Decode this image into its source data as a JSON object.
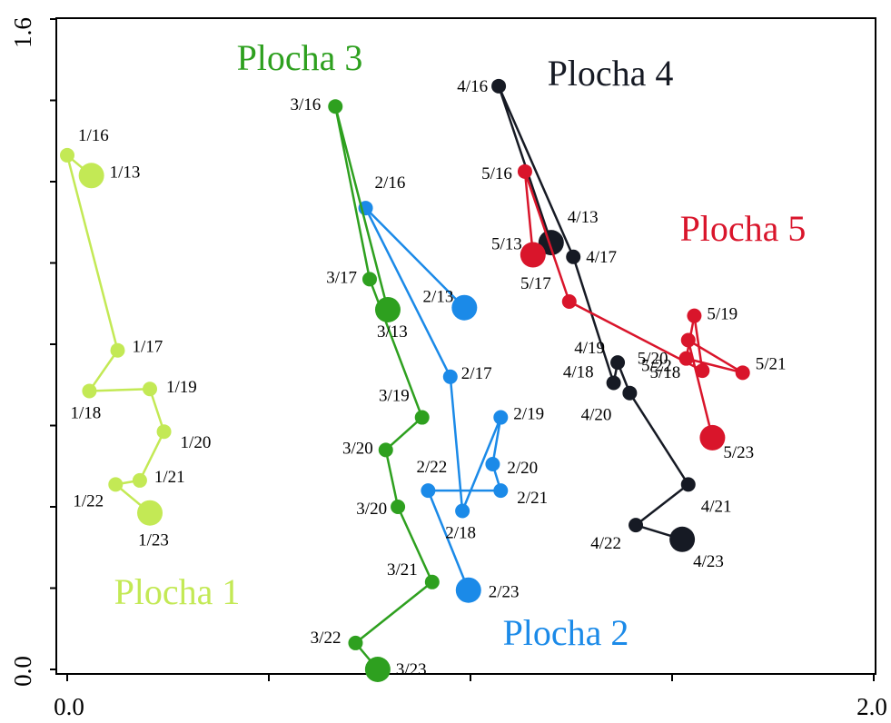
{
  "chart_data": {
    "type": "scatter",
    "xlim": [
      0.0,
      2.0
    ],
    "ylim": [
      0.0,
      1.6
    ],
    "x_tick_labels": [
      "0.0",
      "2.0"
    ],
    "y_tick_labels": [
      "0.0",
      "1.6"
    ],
    "x_minor_ticks": [
      0.0,
      0.5,
      1.0,
      1.5,
      2.0
    ],
    "y_minor_ticks": [
      0.0,
      0.2,
      0.4,
      0.6,
      0.8,
      1.0,
      1.2,
      1.4,
      1.6
    ],
    "grid": false,
    "series": [
      {
        "name": "Plocha 1",
        "color": "#c3e955",
        "points": [
          {
            "label": "1/13",
            "x": 0.06,
            "y": 1.215,
            "big": true
          },
          {
            "label": "1/16",
            "x": 0.0,
            "y": 1.265
          },
          {
            "label": "1/17",
            "x": 0.125,
            "y": 0.785
          },
          {
            "label": "1/18",
            "x": 0.055,
            "y": 0.685
          },
          {
            "label": "1/19",
            "x": 0.205,
            "y": 0.69
          },
          {
            "label": "1/20",
            "x": 0.24,
            "y": 0.585
          },
          {
            "label": "1/21",
            "x": 0.18,
            "y": 0.465
          },
          {
            "label": "1/22",
            "x": 0.12,
            "y": 0.455
          },
          {
            "label": "1/23",
            "x": 0.205,
            "y": 0.385,
            "big": true
          }
        ]
      },
      {
        "name": "Plocha 2",
        "color": "#1b8ae8",
        "points": [
          {
            "label": "2/13",
            "x": 0.985,
            "y": 0.89,
            "big": true
          },
          {
            "label": "2/16",
            "x": 0.74,
            "y": 1.135
          },
          {
            "label": "2/17",
            "x": 0.95,
            "y": 0.72
          },
          {
            "label": "2/18",
            "x": 0.98,
            "y": 0.39
          },
          {
            "label": "2/19",
            "x": 1.075,
            "y": 0.62
          },
          {
            "label": "2/20",
            "x": 1.055,
            "y": 0.505
          },
          {
            "label": "2/21",
            "x": 1.075,
            "y": 0.44
          },
          {
            "label": "2/22",
            "x": 0.895,
            "y": 0.44
          },
          {
            "label": "2/23",
            "x": 0.995,
            "y": 0.195,
            "big": true
          }
        ]
      },
      {
        "name": "Plocha 3",
        "color": "#2ea01f",
        "points": [
          {
            "label": "3/13",
            "x": 0.795,
            "y": 0.885,
            "big": true
          },
          {
            "label": "3/16",
            "x": 0.665,
            "y": 1.385
          },
          {
            "label": "3/17",
            "x": 0.75,
            "y": 0.96
          },
          {
            "label": "3/19",
            "x": 0.88,
            "y": 0.62
          },
          {
            "label": "3/20",
            "x": 0.79,
            "y": 0.54
          },
          {
            "label": "3/20",
            "x": 0.82,
            "y": 0.4
          },
          {
            "label": "3/21",
            "x": 0.905,
            "y": 0.215
          },
          {
            "label": "3/22",
            "x": 0.715,
            "y": 0.065
          },
          {
            "label": "3/23",
            "x": 0.77,
            "y": 0.0,
            "big": true
          }
        ]
      },
      {
        "name": "Plocha 4",
        "color": "#161a24",
        "points": [
          {
            "label": "4/13",
            "x": 1.2,
            "y": 1.05,
            "big": true
          },
          {
            "label": "4/16",
            "x": 1.07,
            "y": 1.435
          },
          {
            "label": "4/17",
            "x": 1.255,
            "y": 1.015
          },
          {
            "label": "4/18",
            "x": 1.355,
            "y": 0.705
          },
          {
            "label": "4/19",
            "x": 1.365,
            "y": 0.755
          },
          {
            "label": "4/20",
            "x": 1.395,
            "y": 0.68
          },
          {
            "label": "4/21",
            "x": 1.54,
            "y": 0.455
          },
          {
            "label": "4/22",
            "x": 1.41,
            "y": 0.355
          },
          {
            "label": "4/23",
            "x": 1.525,
            "y": 0.32,
            "big": true
          }
        ]
      },
      {
        "name": "Plocha 5",
        "color": "#d9152b",
        "points": [
          {
            "label": "5/13",
            "x": 1.155,
            "y": 1.02,
            "big": true
          },
          {
            "label": "5/16",
            "x": 1.135,
            "y": 1.225
          },
          {
            "label": "5/17",
            "x": 1.245,
            "y": 0.905
          },
          {
            "label": "5/18",
            "x": 1.575,
            "y": 0.735
          },
          {
            "label": "5/19",
            "x": 1.555,
            "y": 0.87
          },
          {
            "label": "5/20",
            "x": 1.535,
            "y": 0.765
          },
          {
            "label": "5/21",
            "x": 1.675,
            "y": 0.73
          },
          {
            "label": "5/22",
            "x": 1.54,
            "y": 0.81
          },
          {
            "label": "5/23",
            "x": 1.6,
            "y": 0.57,
            "big": true
          }
        ]
      }
    ]
  }
}
